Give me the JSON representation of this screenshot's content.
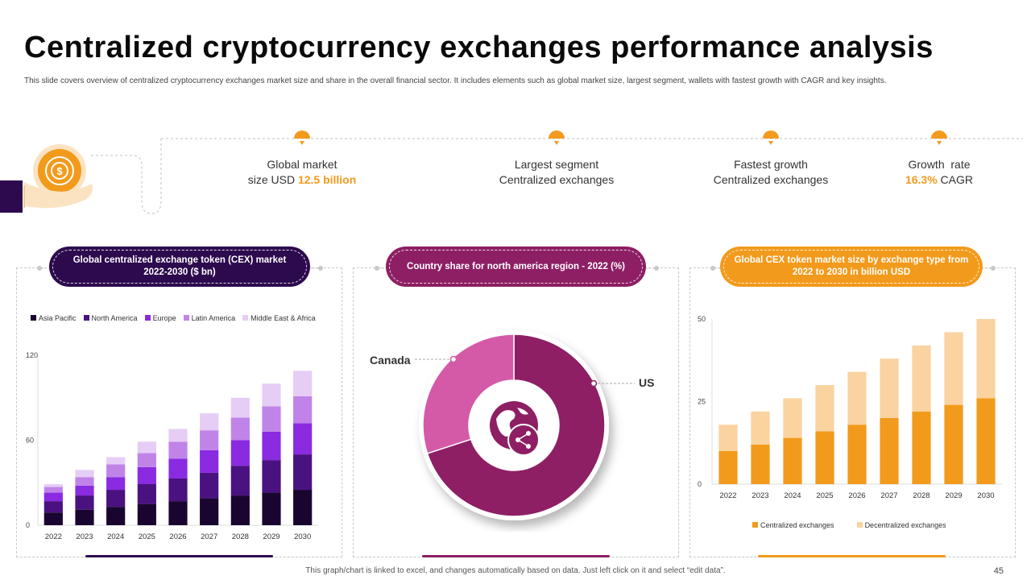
{
  "page": {
    "title": "Centralized cryptocurrency exchanges performance analysis",
    "subtitle": "This slide covers overview of centralized cryptocurrency exchanges market size and share in the overall financial sector. It includes elements such as global market size, largest segment, wallets with fastest growth with CAGR and key insights.",
    "footer_note": "This graph/chart is linked to excel, and changes automatically based on data. Just left click on it and select “edit data”.",
    "page_number": "45"
  },
  "colors": {
    "accent_orange": "#f29a1c",
    "deep_purple": "#2d0a4e",
    "magenta": "#8e1f64",
    "pink": "#d45aa8"
  },
  "metrics": [
    {
      "line1": "Global market",
      "line2_prefix": "size USD ",
      "line2_highlight": "12.5 billion",
      "line2_suffix": ""
    },
    {
      "line1": "Largest segment",
      "line2_prefix": "Centralized exchanges",
      "line2_highlight": "",
      "line2_suffix": ""
    },
    {
      "line1": "Fastest growth",
      "line2_prefix": "Centralized exchanges",
      "line2_highlight": "",
      "line2_suffix": ""
    },
    {
      "line1": "Growth  rate",
      "line2_prefix": "",
      "line2_highlight": "16.3%",
      "line2_suffix": " CAGR"
    }
  ],
  "panels": {
    "left_title": "Global centralized exchange token (CEX) market 2022-2030 ($ bn)",
    "middle_title": "Country share for north america region - 2022 (%)",
    "right_title": "Global CEX token market size by exchange type from 2022 to 2030 in billion USD"
  },
  "chart_data": [
    {
      "type": "bar",
      "stacked": true,
      "title": "Global centralized exchange token (CEX) market 2022-2030 ($ bn)",
      "categories": [
        "2022",
        "2023",
        "2024",
        "2025",
        "2026",
        "2027",
        "2028",
        "2029",
        "2030"
      ],
      "ylim": [
        0,
        120
      ],
      "yticks": [
        "0",
        "60",
        "120"
      ],
      "legend_position": "top",
      "series": [
        {
          "name": "Asia Pacific",
          "color": "#1a0530",
          "values": [
            9,
            11,
            13,
            15,
            17,
            19,
            21,
            23,
            25
          ]
        },
        {
          "name": "North America",
          "color": "#4a1280",
          "values": [
            8,
            10,
            12,
            14,
            16,
            18,
            21,
            23,
            25
          ]
        },
        {
          "name": "Europe",
          "color": "#8a2be2",
          "values": [
            6,
            7,
            9,
            12,
            14,
            16,
            18,
            20,
            22
          ]
        },
        {
          "name": "Latin America",
          "color": "#c084e8",
          "values": [
            4,
            6,
            9,
            10,
            12,
            14,
            16,
            18,
            19
          ]
        },
        {
          "name": "Middle East & Africa",
          "color": "#e6cdf5",
          "values": [
            2,
            5,
            5,
            8,
            9,
            12,
            14,
            16,
            18
          ]
        }
      ]
    },
    {
      "type": "pie",
      "donut": true,
      "title": "Country share for north america region - 2022 (%)",
      "labels": [
        "US",
        "Canada"
      ],
      "values": [
        70,
        30
      ],
      "colors": [
        "#8e1f64",
        "#d45aa8"
      ]
    },
    {
      "type": "bar",
      "stacked": true,
      "title": "Global CEX token market size by exchange type from 2022 to 2030 in billion USD",
      "categories": [
        "2022",
        "2023",
        "2024",
        "2025",
        "2026",
        "2027",
        "2028",
        "2029",
        "2030"
      ],
      "ylim": [
        0,
        50
      ],
      "yticks": [
        "0",
        "25",
        "50"
      ],
      "legend_position": "bottom",
      "series": [
        {
          "name": "Centralized exchanges",
          "color": "#f29a1c",
          "values": [
            10,
            12,
            14,
            16,
            18,
            20,
            22,
            24,
            26
          ]
        },
        {
          "name": "Decentralized exchanges",
          "color": "#fad3a0",
          "values": [
            8,
            10,
            12,
            14,
            16,
            18,
            20,
            22,
            24
          ]
        }
      ]
    }
  ]
}
